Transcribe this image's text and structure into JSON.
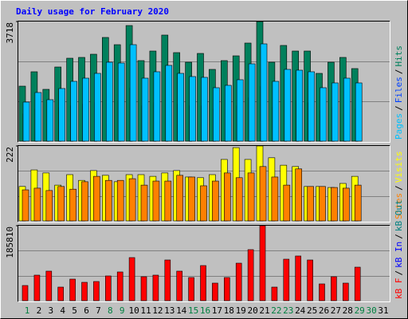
{
  "chart_data": [
    {
      "type": "bar",
      "title": "Daily usage for February 2020",
      "ylim": [
        0,
        3718
      ],
      "yticks": [
        3718
      ],
      "legend_separator": "/",
      "series": [
        {
          "name": "Hits",
          "color": "#00805c",
          "values": [
            1710,
            2157,
            1611,
            2305,
            2578,
            2603,
            2702,
            3223,
            2999,
            3594,
            2504,
            2801,
            3297,
            2752,
            2454,
            2727,
            2231,
            2504,
            2652,
            3049,
            3718,
            2454,
            2975,
            2801,
            2801,
            2107,
            2454,
            2603,
            2256,
            null,
            null
          ]
        },
        {
          "name": "Files",
          "color": "#0040ff",
          "values": [
            850,
            1000,
            900,
            1050,
            1100,
            1150,
            1200,
            1300,
            1250,
            1650,
            1100,
            1200,
            1250,
            1150,
            1100,
            1100,
            1000,
            1050,
            1100,
            1350,
            1700,
            1050,
            1200,
            1250,
            1200,
            950,
            1050,
            1100,
            1000,
            null,
            null
          ]
        },
        {
          "name": "Pages",
          "color": "#00c0ff",
          "values": [
            1215,
            1512,
            1289,
            1636,
            1859,
            1958,
            2107,
            2454,
            2429,
            2999,
            1958,
            2157,
            2355,
            2107,
            2008,
            1983,
            1661,
            1735,
            1909,
            2404,
            3024,
            1859,
            2231,
            2206,
            2157,
            1661,
            1810,
            1958,
            1810,
            null,
            null
          ]
        }
      ]
    },
    {
      "type": "bar",
      "ylim": [
        0,
        222
      ],
      "yticks": [
        222
      ],
      "legend_separator": "/",
      "series": [
        {
          "name": "Visits",
          "color": "#ffff00",
          "values": [
            102,
            151,
            142,
            106,
            137,
            120,
            149,
            135,
            116,
            137,
            137,
            132,
            142,
            149,
            130,
            128,
            137,
            182,
            217,
            182,
            222,
            187,
            165,
            161,
            102,
            102,
            99,
            111,
            132,
            null,
            null
          ]
        },
        {
          "name": "Sites",
          "color": "#ff8000",
          "values": [
            92,
            97,
            90,
            102,
            94,
            116,
            132,
            120,
            120,
            125,
            106,
            118,
            118,
            135,
            130,
            104,
            118,
            142,
            128,
            142,
            161,
            130,
            106,
            154,
            102,
            102,
            99,
            97,
            106,
            null,
            null
          ]
        }
      ]
    },
    {
      "type": "bar",
      "ylim": [
        0,
        185810
      ],
      "yticks": [
        185810
      ],
      "legend_separator": "/",
      "categories": [
        "1",
        "2",
        "3",
        "4",
        "5",
        "6",
        "7",
        "8",
        "9",
        "10",
        "11",
        "12",
        "13",
        "14",
        "15",
        "16",
        "17",
        "18",
        "19",
        "20",
        "21",
        "22",
        "23",
        "24",
        "25",
        "26",
        "27",
        "28",
        "29",
        "30",
        "31"
      ],
      "category_colors": [
        "#008040",
        "#000000",
        "#000000",
        "#000000",
        "#000000",
        "#000000",
        "#000000",
        "#008040",
        "#008040",
        "#000000",
        "#000000",
        "#000000",
        "#000000",
        "#000000",
        "#008040",
        "#008040",
        "#000000",
        "#000000",
        "#000000",
        "#000000",
        "#000000",
        "#008040",
        "#008040",
        "#000000",
        "#000000",
        "#000000",
        "#000000",
        "#000000",
        "#008040",
        "#008040",
        "#000000"
      ],
      "series": [
        {
          "name": "kB F",
          "color": "#ff0000",
          "values": [
            37560,
            63260,
            73150,
            33610,
            53380,
            45470,
            47450,
            61290,
            71170,
            106760,
            59310,
            63260,
            100830,
            73150,
            57330,
            86990,
            43490,
            57330,
            92920,
            126530,
            185810,
            33610,
            102800,
            110710,
            100830,
            41520,
            59310,
            43490,
            83030,
            null,
            null
          ]
        },
        {
          "name": "kB In",
          "color": "#0000ff"
        },
        {
          "name": "kB Out",
          "color": "#008080"
        }
      ]
    }
  ]
}
